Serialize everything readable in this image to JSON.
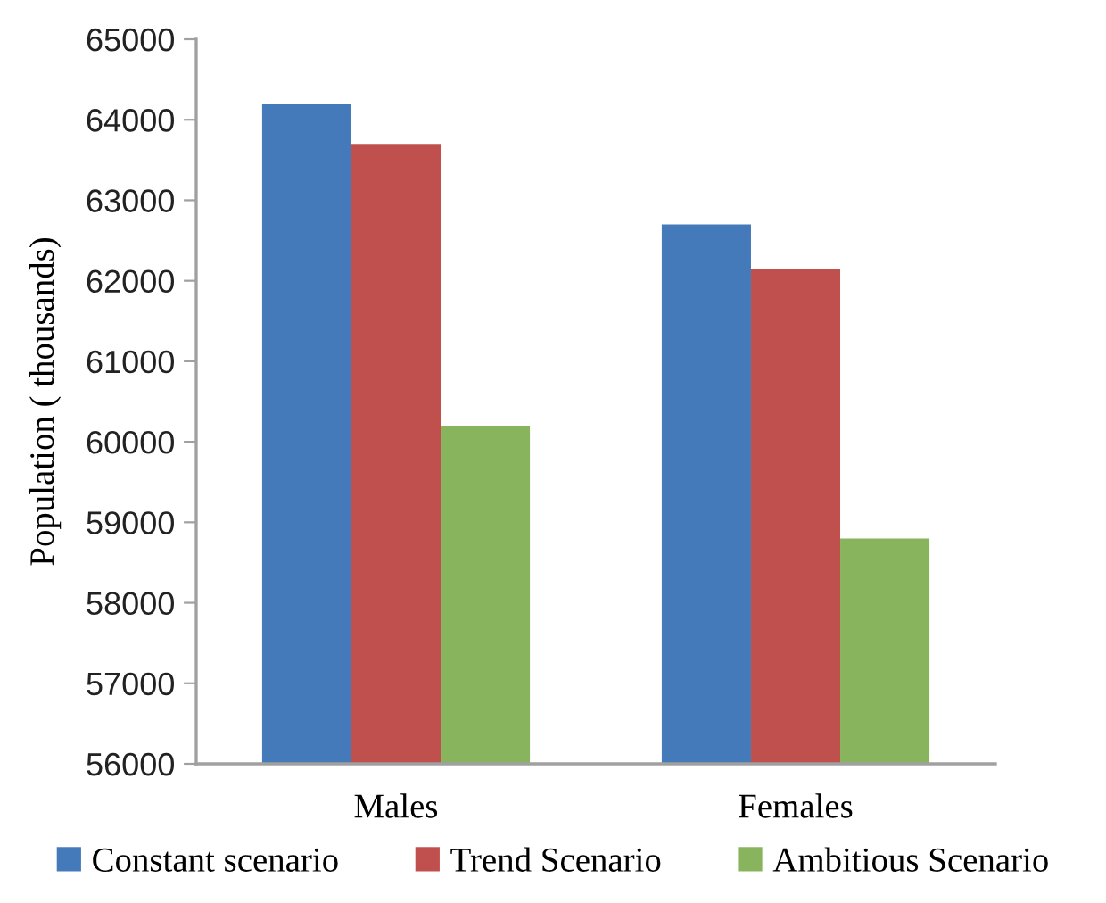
{
  "chart_data": {
    "type": "bar",
    "ylabel": "Population ( thousands)",
    "categories": [
      "Males",
      "Females"
    ],
    "series": [
      {
        "name": "Constant scenario",
        "color": "#447ab9",
        "values": [
          64200,
          62700
        ]
      },
      {
        "name": "Trend Scenario",
        "color": "#c0504d",
        "values": [
          63700,
          62150
        ]
      },
      {
        "name": "Ambitious Scenario",
        "color": "#89b45e",
        "values": [
          60200,
          58800
        ]
      }
    ],
    "ylim": [
      56000,
      65000
    ],
    "yticks": [
      56000,
      57000,
      58000,
      59000,
      60000,
      61000,
      62000,
      63000,
      64000,
      65000
    ],
    "grid": false,
    "legend": "bottom"
  }
}
